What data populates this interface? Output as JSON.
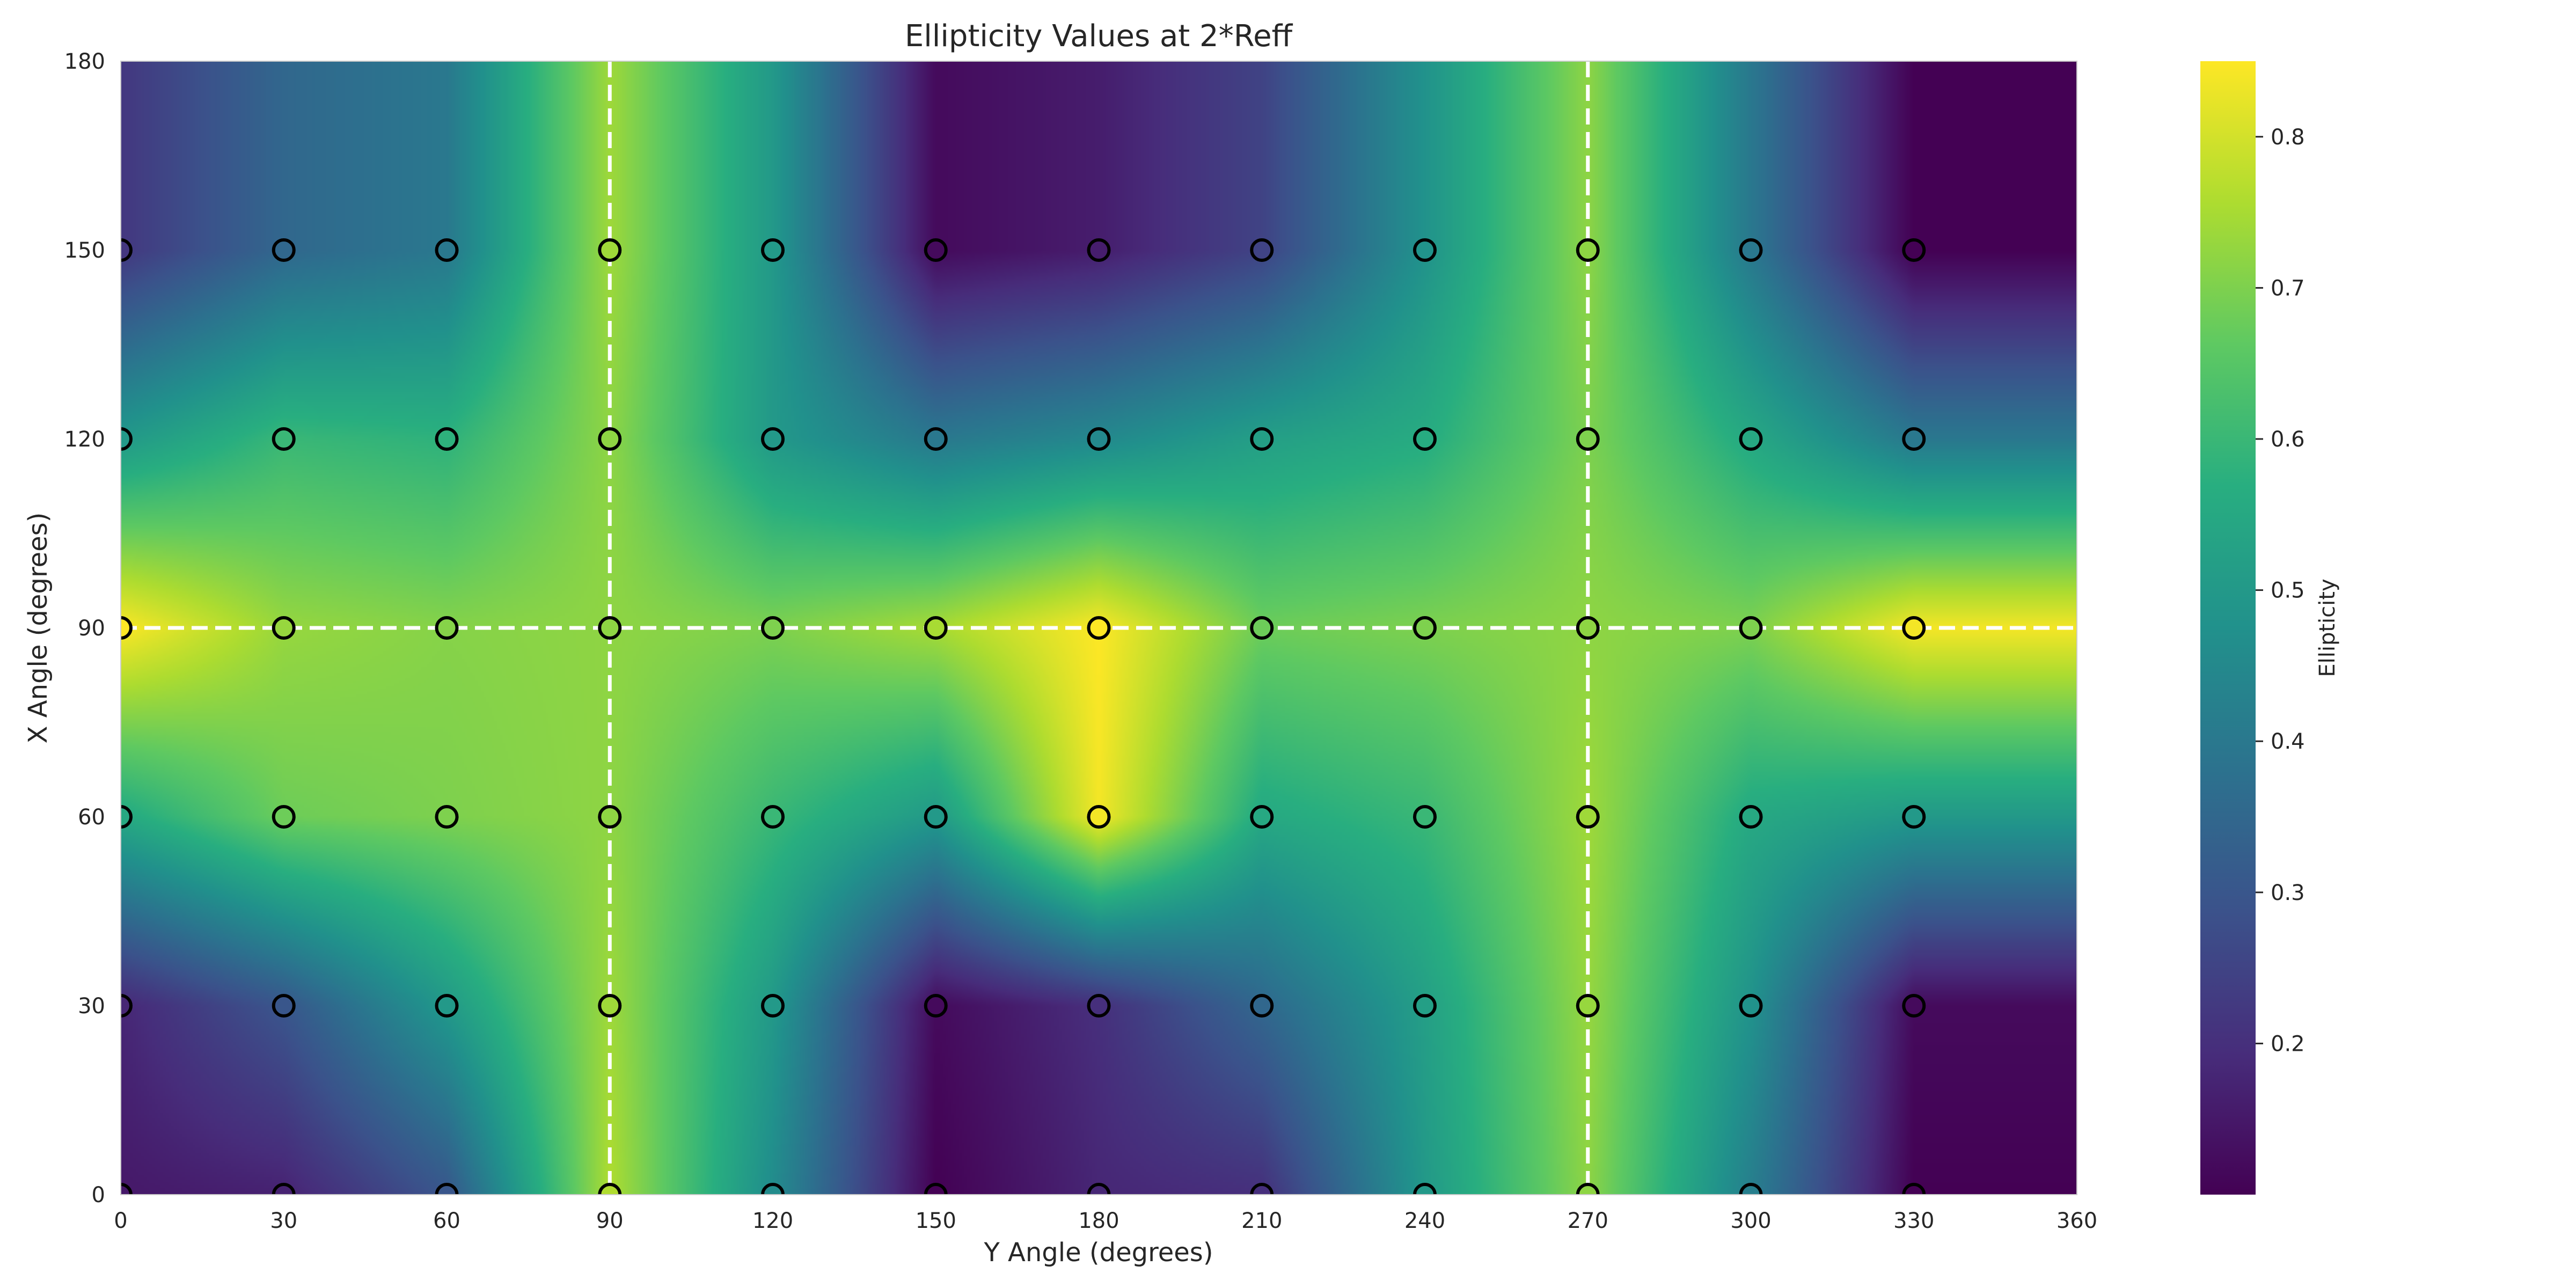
{
  "chart_data": {
    "type": "heatmap",
    "title": "Ellipticity Values at 2*Reff",
    "xlabel": "Y Angle (degrees)",
    "ylabel": "X Angle (degrees)",
    "xlim": [
      0,
      360
    ],
    "ylim": [
      0,
      180
    ],
    "x_ticks": [
      "0",
      "30",
      "60",
      "90",
      "120",
      "150",
      "180",
      "210",
      "240",
      "270",
      "300",
      "330",
      "360"
    ],
    "y_ticks": [
      "0",
      "30",
      "60",
      "90",
      "120",
      "150",
      "180"
    ],
    "colorbar": {
      "label": "Ellipticity",
      "colormap": "viridis",
      "range": [
        0.1,
        0.85
      ],
      "ticks": [
        "0.2",
        "0.3",
        "0.4",
        "0.5",
        "0.6",
        "0.7",
        "0.8"
      ]
    },
    "reference_lines": {
      "x": [
        90,
        270
      ],
      "y": [
        90
      ],
      "style": "white-dashed"
    },
    "grid_x": [
      0,
      30,
      60,
      90,
      120,
      150,
      180,
      210,
      240,
      270,
      300,
      330
    ],
    "grid_y": [
      0,
      30,
      60,
      90,
      120,
      150
    ],
    "values": [
      [
        0.15,
        0.17,
        0.3,
        0.76,
        0.46,
        0.1,
        0.18,
        0.2,
        0.5,
        0.72,
        0.42,
        0.1
      ],
      [
        0.18,
        0.3,
        0.5,
        0.74,
        0.5,
        0.12,
        0.2,
        0.35,
        0.52,
        0.73,
        0.48,
        0.12
      ],
      [
        0.55,
        0.68,
        0.7,
        0.72,
        0.6,
        0.5,
        0.84,
        0.55,
        0.6,
        0.74,
        0.55,
        0.5
      ],
      [
        0.85,
        0.73,
        0.71,
        0.72,
        0.7,
        0.75,
        0.85,
        0.68,
        0.7,
        0.72,
        0.7,
        0.84
      ],
      [
        0.5,
        0.6,
        0.58,
        0.72,
        0.5,
        0.4,
        0.45,
        0.52,
        0.56,
        0.7,
        0.55,
        0.4
      ],
      [
        0.22,
        0.35,
        0.4,
        0.74,
        0.5,
        0.12,
        0.16,
        0.25,
        0.48,
        0.72,
        0.4,
        0.1
      ]
    ]
  }
}
